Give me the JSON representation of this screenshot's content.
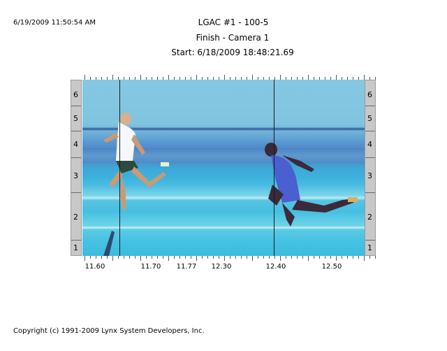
{
  "header": {
    "print_datetime": "6/19/2009 11:50:54 AM",
    "title": "LGAC #1 - 100-5",
    "subtitle": "Finish - Camera 1",
    "start": "Start: 6/18/2009 18:48:21.69"
  },
  "lane_scale": {
    "labels": [
      "6",
      "5",
      "4",
      "3",
      "2",
      "1"
    ]
  },
  "time_axis": {
    "labels": [
      "11.60",
      "11.70",
      "11.77",
      "12.30",
      "12.40",
      "12.50"
    ]
  },
  "footer": {
    "copyright": "Copyright (c) 1991-2009 Lynx System Developers, Inc."
  },
  "colors": {
    "sky": "#80c4e0",
    "track": "#46bfe1",
    "scale_bg": "#c8c8c8"
  }
}
